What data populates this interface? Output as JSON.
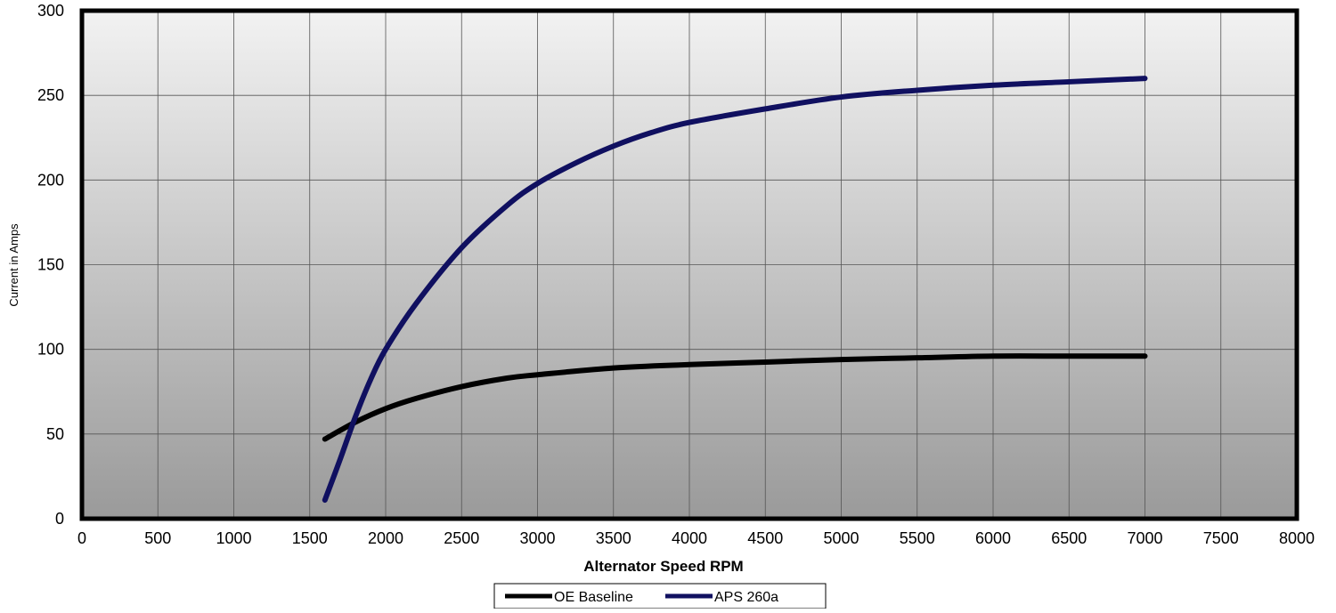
{
  "chart_data": {
    "type": "line",
    "title": "",
    "xlabel": "Alternator Speed RPM",
    "ylabel": "Current in Amps",
    "xlim": [
      0,
      8000
    ],
    "ylim": [
      0,
      300
    ],
    "xticks": [
      0,
      500,
      1000,
      1500,
      2000,
      2500,
      3000,
      3500,
      4000,
      4500,
      5000,
      5500,
      6000,
      6500,
      7000,
      7500,
      8000
    ],
    "yticks": [
      0,
      50,
      100,
      150,
      200,
      250,
      300
    ],
    "grid": true,
    "legend_position": "bottom-center",
    "series": [
      {
        "name": "OE Baseline",
        "color": "#000000",
        "points": [
          [
            1600,
            47
          ],
          [
            1800,
            57
          ],
          [
            2000,
            65
          ],
          [
            2200,
            71
          ],
          [
            2500,
            78
          ],
          [
            2800,
            83
          ],
          [
            3000,
            85
          ],
          [
            3500,
            89
          ],
          [
            4000,
            91
          ],
          [
            4500,
            92.5
          ],
          [
            5000,
            94
          ],
          [
            5500,
            95
          ],
          [
            6000,
            96
          ],
          [
            6500,
            96
          ],
          [
            7000,
            96
          ]
        ]
      },
      {
        "name": "APS 260a",
        "color": "#101060",
        "points": [
          [
            1600,
            11
          ],
          [
            1700,
            35
          ],
          [
            1800,
            60
          ],
          [
            1900,
            82
          ],
          [
            2000,
            100
          ],
          [
            2200,
            127
          ],
          [
            2500,
            160
          ],
          [
            2800,
            185
          ],
          [
            3000,
            198
          ],
          [
            3250,
            210
          ],
          [
            3500,
            220
          ],
          [
            3750,
            228
          ],
          [
            4000,
            234
          ],
          [
            4500,
            242
          ],
          [
            5000,
            249
          ],
          [
            5500,
            253
          ],
          [
            6000,
            256
          ],
          [
            6500,
            258
          ],
          [
            7000,
            260
          ]
        ]
      }
    ]
  }
}
